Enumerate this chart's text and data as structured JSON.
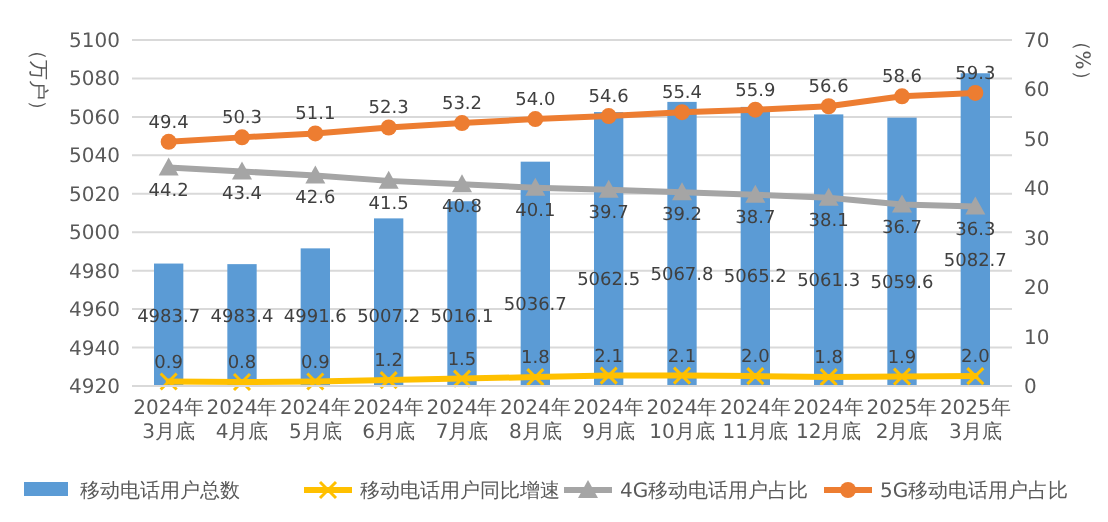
{
  "chart_data": {
    "type": "bar",
    "ylabel": "（万户）",
    "y2label": "（%）",
    "categories": [
      "2024年\n3月底",
      "2024年\n4月底",
      "2024年\n5月底",
      "2024年\n6月底",
      "2024年\n7月底",
      "2024年\n8月底",
      "2024年\n9月底",
      "2024年\n10月底",
      "2024年\n11月底",
      "2024年\n12月底",
      "2025年\n2月底",
      "2025年\n3月底"
    ],
    "series": [
      {
        "name": "移动电话用户总数",
        "color": "#5b9bd5",
        "values": [
          4983.7,
          4983.4,
          4991.6,
          5007.2,
          5016.1,
          5036.7,
          5062.5,
          5067.8,
          5065.2,
          5061.3,
          5059.6,
          5082.7
        ]
      },
      {
        "name": "移动电话用户同比增速",
        "type": "line",
        "axis": "y2",
        "marker": "cross",
        "color": "#ffc000",
        "values": [
          0.9,
          0.8,
          0.9,
          1.2,
          1.5,
          1.8,
          2.1,
          2.1,
          2.0,
          1.8,
          1.9,
          2.0
        ],
        "value_labels": [
          "0.9",
          "0.8",
          "0.9",
          "1.2",
          "1.5",
          "1.8",
          "2.1",
          "2.1",
          "2.0",
          "1.8",
          "1.9",
          "2.0"
        ]
      },
      {
        "name": "4G移动电话用户占比",
        "type": "line",
        "axis": "y2",
        "marker": "triangle",
        "color": "#a5a5a5",
        "values": [
          44.2,
          43.4,
          42.6,
          41.5,
          40.8,
          40.1,
          39.7,
          39.2,
          38.7,
          38.1,
          36.7,
          36.3
        ]
      },
      {
        "name": "5G移动电话用户占比",
        "type": "line",
        "axis": "y2",
        "marker": "circle",
        "color": "#ed7d31",
        "values": [
          49.4,
          50.3,
          51.1,
          52.3,
          53.2,
          54.0,
          54.6,
          55.4,
          55.9,
          56.6,
          58.6,
          59.3
        ],
        "value_labels": [
          "49.4",
          "50.3",
          "51.1",
          "52.3",
          "53.2",
          "54.0",
          "54.6",
          "55.4",
          "55.9",
          "56.6",
          "58.6",
          "59.3"
        ]
      }
    ],
    "ylim": [
      4920,
      5100
    ],
    "yticks": [
      4920,
      4940,
      4960,
      4980,
      5000,
      5020,
      5040,
      5060,
      5080,
      5100
    ],
    "y2lim": [
      0,
      70
    ],
    "y2ticks": [
      0,
      10,
      20,
      30,
      40,
      50,
      60,
      70
    ],
    "grid": "y",
    "legend": "bottom",
    "data_labels": true
  }
}
